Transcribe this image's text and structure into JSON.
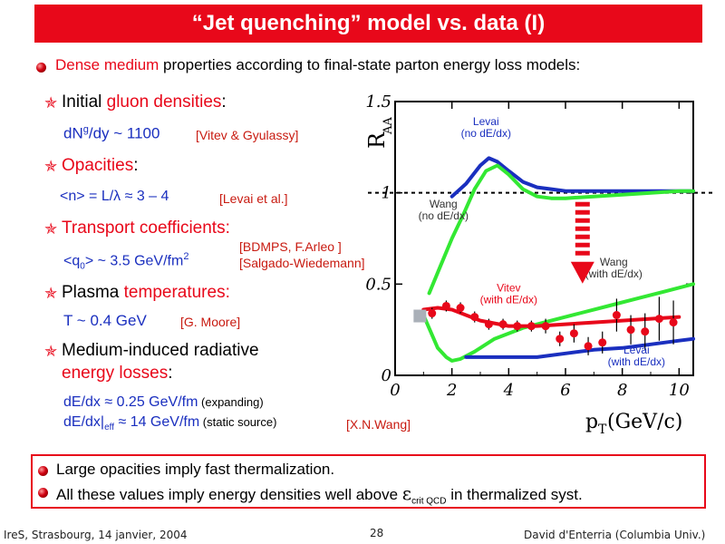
{
  "title": "“Jet quenching” model vs. data (I)",
  "intro": {
    "part1": "Dense medium",
    "part2": " properties according to final-state parton energy loss models:"
  },
  "items": {
    "gluon": {
      "label1": "Initial ",
      "label2": "gluon densities",
      "label3": ":",
      "val_a": "dN",
      "val_sup": "g",
      "val_b": "/dy ~ 1100",
      "ref": "[Vitev & Gyulassy]"
    },
    "opac": {
      "label": "Opacities",
      "colon": ":",
      "value": "<n> = L/λ  ≈ 3 – 4",
      "ref": "[Levai et al.]"
    },
    "transport": {
      "label": "Transport coefficients:",
      "val_a": "<q",
      "val_sub": "0",
      "val_b": "> ~ 3.5 GeV/fm",
      "val_sup": "2",
      "ref1": "[BDMPS, F.Arleo ]",
      "ref2": "[Salgado-Wiedemann]"
    },
    "plasma": {
      "label1": "Plasma ",
      "label2": "temperatures:",
      "value": "T ~ 0.4 GeV",
      "ref": "[G. Moore]"
    },
    "radiative": {
      "label1": "Medium-induced radiative",
      "label2": "energy losses",
      "label3": ":",
      "v1": "dE/dx ≈ 0.25 GeV/fm",
      "v1_note": " (expanding)",
      "v2a": "dE/dx|",
      "v2_sub": "eff",
      "v2b": " ≈ 14 GeV/fm",
      "v2_note": " (static source)",
      "ref": "[X.N.Wang]"
    }
  },
  "summary": {
    "line1": "Large opacities imply fast thermalization.",
    "line2a": "All these values imply energy densities well above ",
    "line2_eps": "ε",
    "line2_sub": "crit QCD",
    "line2b": " in thermalized syst."
  },
  "footer": {
    "left": "IreS, Strasbourg, 14 janvier, 2004",
    "page": "28",
    "right": "David d'Enterria (Columbia Univ.)"
  },
  "chart_data": {
    "type": "line",
    "title": "",
    "ylabel": "R_AA",
    "ylabel_main": "R",
    "ylabel_sub": "AA",
    "xlabel": "p_T (GeV/c)",
    "xlabel_main": "p",
    "xlabel_sub": "T",
    "xlabel_unit": " (GeV/c)",
    "xlim": [
      0,
      10.5
    ],
    "ylim": [
      0,
      1.5
    ],
    "xticks": [
      0,
      2,
      4,
      6,
      8,
      10
    ],
    "yticks": [
      {
        "v": 0,
        "label": "0"
      },
      {
        "v": 0.5,
        "label": "0.5"
      },
      {
        "v": 1,
        "label": "1"
      },
      {
        "v": 1.5,
        "label": "1.5"
      }
    ],
    "reference_line": 1.0,
    "series": [
      {
        "name": "Levai (no dE/dx)",
        "color": "#1a2fbf",
        "x": [
          2.0,
          2.5,
          3.0,
          3.3,
          3.6,
          4.0,
          4.5,
          5.0,
          5.5,
          6.0,
          7.0,
          8.0,
          9.0,
          10.0,
          10.5
        ],
        "y": [
          0.98,
          1.05,
          1.15,
          1.19,
          1.17,
          1.12,
          1.06,
          1.03,
          1.02,
          1.01,
          1.01,
          1.01,
          1.01,
          1.01,
          1.01
        ]
      },
      {
        "name": "Wang (no dE/dx)",
        "color": "#33e833",
        "x": [
          1.2,
          1.6,
          2.0,
          2.4,
          2.8,
          3.2,
          3.6,
          4.0,
          4.5,
          5.0,
          5.5,
          6.0,
          7.0,
          8.0,
          9.0,
          10.0,
          10.5
        ],
        "y": [
          0.45,
          0.6,
          0.75,
          0.88,
          1.02,
          1.12,
          1.15,
          1.1,
          1.02,
          0.98,
          0.97,
          0.97,
          0.98,
          0.99,
          1.0,
          1.01,
          1.01
        ]
      },
      {
        "name": "Wang (with dE/dx)",
        "color": "#33e833",
        "x": [
          1.0,
          1.5,
          1.8,
          2.0,
          2.3,
          2.8,
          3.5,
          4.5,
          5.5,
          6.5,
          7.5,
          8.5,
          9.5,
          10.5
        ],
        "y": [
          0.33,
          0.15,
          0.1,
          0.08,
          0.09,
          0.13,
          0.2,
          0.26,
          0.3,
          0.34,
          0.38,
          0.42,
          0.46,
          0.5
        ]
      },
      {
        "name": "Vitev (with dE/dx)",
        "color": "#e8081a",
        "x": [
          1.0,
          1.5,
          2.0,
          3.0,
          4.0,
          5.0,
          6.0,
          7.0,
          8.0,
          9.0,
          10.0
        ],
        "y": [
          0.36,
          0.37,
          0.36,
          0.3,
          0.27,
          0.27,
          0.28,
          0.29,
          0.3,
          0.31,
          0.32
        ]
      },
      {
        "name": "Levai (with dE/dx)",
        "color": "#1a2fbf",
        "x": [
          2.5,
          3.0,
          4.0,
          5.0,
          6.0,
          7.0,
          8.0,
          9.0,
          10.0,
          10.5
        ],
        "y": [
          0.1,
          0.1,
          0.1,
          0.1,
          0.12,
          0.14,
          0.15,
          0.17,
          0.19,
          0.2
        ]
      }
    ],
    "data_points": {
      "color": "#e8081a",
      "x": [
        1.3,
        1.8,
        2.3,
        2.8,
        3.3,
        3.8,
        4.3,
        4.8,
        5.3,
        5.8,
        6.3,
        6.8,
        7.3,
        7.8,
        8.3,
        8.8,
        9.3,
        9.8
      ],
      "y": [
        0.34,
        0.38,
        0.37,
        0.32,
        0.28,
        0.28,
        0.27,
        0.27,
        0.27,
        0.2,
        0.23,
        0.16,
        0.18,
        0.33,
        0.25,
        0.24,
        0.31,
        0.29
      ],
      "err": [
        0.03,
        0.03,
        0.03,
        0.03,
        0.03,
        0.03,
        0.03,
        0.03,
        0.04,
        0.04,
        0.05,
        0.05,
        0.06,
        0.09,
        0.08,
        0.1,
        0.12,
        0.12
      ]
    },
    "annotations": [
      {
        "text1": "Levai",
        "text2": "(no dE/dx)",
        "color": "#1a2fbf",
        "x": 3.2,
        "y": 1.37
      },
      {
        "text1": "Wang",
        "text2": "(no dE/dx)",
        "color": "#333333",
        "x": 1.7,
        "y": 0.92
      },
      {
        "text1": "Wang",
        "text2": "(with dE/dx)",
        "color": "#333333",
        "x": 7.7,
        "y": 0.6
      },
      {
        "text1": "Vitev",
        "text2": "(with dE/dx)",
        "color": "#e8081a",
        "x": 4.0,
        "y": 0.46
      },
      {
        "text1": "Levai",
        "text2": "(with dE/dx)",
        "color": "#1a2fbf",
        "x": 8.5,
        "y": 0.12
      }
    ]
  }
}
